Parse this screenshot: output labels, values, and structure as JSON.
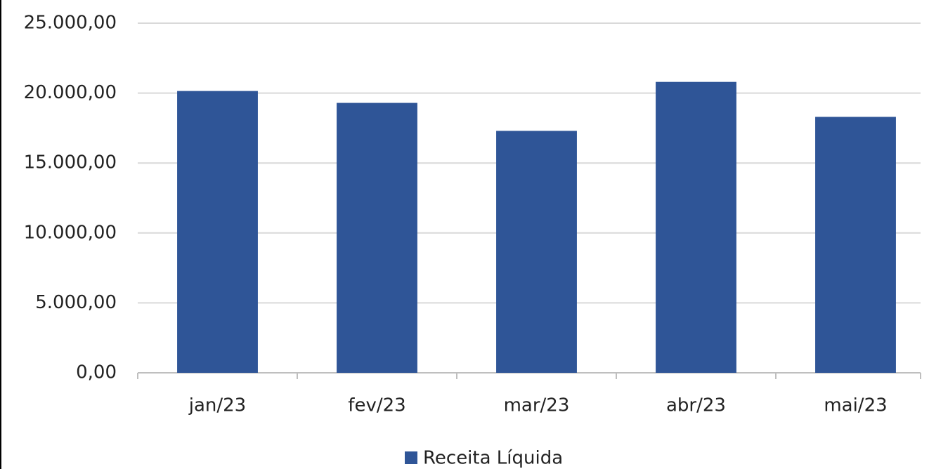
{
  "chart_data": {
    "type": "bar",
    "categories": [
      "jan/23",
      "fev/23",
      "mar/23",
      "abr/23",
      "mai/23"
    ],
    "series": [
      {
        "name": "Receita Líquida",
        "color": "#2f5597",
        "values": [
          20150,
          19300,
          17300,
          20800,
          18300
        ]
      }
    ],
    "ylim": [
      0,
      25000
    ],
    "yticks": [
      {
        "value": 0,
        "label": "0,00"
      },
      {
        "value": 5000,
        "label": "5.000,00"
      },
      {
        "value": 10000,
        "label": "10.000,00"
      },
      {
        "value": 15000,
        "label": "15.000,00"
      },
      {
        "value": 20000,
        "label": "20.000,00"
      },
      {
        "value": 25000,
        "label": "25.000,00"
      }
    ],
    "grid": true,
    "legend": "bottom"
  }
}
